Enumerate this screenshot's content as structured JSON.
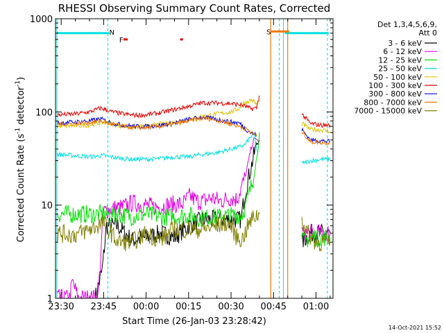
{
  "chart_data": {
    "type": "line",
    "title": "RHESSI Observing Summary Count Rates, Corrected",
    "xlabel": "Start Time (26-Jan-03 23:28:42)",
    "ylabel_main": "Corrected Count Rate (s",
    "ylabel_sup1": "-1",
    "ylabel_mid": " detector",
    "ylabel_sup2": "-1",
    "ylabel_end": ")",
    "y_scale": "log",
    "ylim": [
      1,
      1000
    ],
    "xlim_minutes": [
      -2,
      96
    ],
    "x_ticks": [
      {
        "label": "23:30",
        "t": 0
      },
      {
        "label": "23:45",
        "t": 15
      },
      {
        "label": "00:00",
        "t": 30
      },
      {
        "label": "00:15",
        "t": 45
      },
      {
        "label": "00:30",
        "t": 60
      },
      {
        "label": "00:45",
        "t": 75
      },
      {
        "label": "01:00",
        "t": 90
      }
    ],
    "y_ticks": [
      {
        "label": "1",
        "v": 1
      },
      {
        "label": "10",
        "v": 10
      },
      {
        "label": "100",
        "v": 100
      },
      {
        "label": "1000",
        "v": 1000
      }
    ],
    "legend_header": [
      "Det 1,3,4,5,6,9,",
      "Att 0"
    ],
    "legend_position": "right",
    "series": [
      {
        "name": "3 - 6 keV",
        "color": "#000000",
        "x": [
          -1.5,
          12,
          14.5,
          16,
          20,
          25,
          30,
          35,
          40,
          45,
          50,
          55,
          58,
          60,
          62,
          63.5,
          65,
          69,
          70,
          85,
          88,
          90,
          93,
          95
        ],
        "y": [
          1,
          1,
          2,
          6,
          6,
          4.2,
          4.5,
          5,
          4.5,
          6,
          7,
          7,
          7,
          7,
          7,
          7,
          14,
          45,
          50,
          4,
          5,
          5,
          5,
          5
        ]
      },
      {
        "name": "6 - 12 keV",
        "color": "#e000e0",
        "x": [
          -1.5,
          3,
          4,
          6,
          13,
          15,
          18,
          22,
          25,
          30,
          33,
          36,
          40,
          43,
          45.5,
          48,
          50,
          53,
          56,
          60,
          62,
          63.5,
          65,
          67,
          68,
          69,
          70,
          85,
          88,
          92,
          95
        ],
        "y": [
          1,
          1,
          1.5,
          1,
          1,
          8.5,
          9.2,
          9.5,
          10.5,
          10,
          9.5,
          9.8,
          10.2,
          10.3,
          12.5,
          11,
          11,
          12,
          11,
          12,
          11.5,
          15,
          20,
          40,
          50,
          52,
          45,
          5,
          5,
          5,
          5
        ]
      },
      {
        "name": "12 - 25 keV",
        "color": "#00e000",
        "x": [
          -1.5,
          5,
          10,
          15,
          20,
          25,
          30,
          35,
          40,
          45,
          50,
          55,
          60,
          62,
          64,
          66,
          68,
          69.5,
          70,
          85,
          88,
          92,
          95
        ],
        "y": [
          8,
          8,
          8,
          8,
          8,
          7.5,
          8,
          7.5,
          7.5,
          7.8,
          7.2,
          7.5,
          7.7,
          7.8,
          8,
          12,
          20,
          40,
          60,
          4,
          4.5,
          4.5,
          4.5
        ]
      },
      {
        "name": "25 - 50 keV",
        "color": "#00e0e0",
        "x": [
          -1.5,
          5,
          10,
          15,
          20,
          25,
          30,
          35,
          40,
          45,
          50,
          55,
          60,
          63,
          65,
          66.5,
          68,
          69.5,
          85,
          88,
          92,
          95
        ],
        "y": [
          35,
          34,
          33,
          34,
          32,
          31,
          31,
          31.5,
          33,
          33,
          35,
          36.5,
          40,
          42,
          45,
          52,
          58,
          35,
          28,
          30,
          31,
          31
        ]
      },
      {
        "name": "50 - 100 keV",
        "color": "#e0c000",
        "x": [
          -1.5,
          5,
          10,
          15,
          20,
          25,
          30,
          35,
          40,
          45,
          50,
          55,
          60,
          63,
          64.5,
          66,
          67.5,
          69,
          70,
          85,
          88,
          92,
          95
        ],
        "y": [
          70,
          71,
          72,
          78,
          71,
          69,
          70,
          74,
          78,
          82,
          90,
          95,
          100,
          110,
          125,
          130,
          135,
          120,
          130,
          75,
          65,
          64,
          62
        ]
      },
      {
        "name": "100 - 300 keV",
        "color": "#e00000",
        "x": [
          -1.5,
          5,
          10,
          14,
          18,
          22,
          26,
          30,
          35,
          40,
          45,
          50,
          55,
          60,
          63,
          65,
          67,
          69,
          70,
          85,
          88,
          92,
          95
        ],
        "y": [
          93,
          95,
          100,
          110,
          100,
          95,
          92,
          93,
          98,
          106,
          115,
          125,
          125,
          123,
          120,
          115,
          108,
          110,
          150,
          95,
          75,
          72,
          72
        ]
      },
      {
        "name": "300 - 800 keV",
        "color": "#0000e0",
        "x": [
          -1.5,
          5,
          10,
          14,
          18,
          22,
          26,
          30,
          35,
          40,
          45,
          50,
          55,
          60,
          63,
          65,
          67,
          69,
          85,
          88,
          92,
          95
        ],
        "y": [
          76,
          78,
          80,
          84,
          76,
          72,
          70,
          70,
          72,
          76,
          83,
          88,
          83,
          78,
          76,
          66,
          60,
          56,
          65,
          50,
          49,
          48
        ]
      },
      {
        "name": "800 - 7000 keV",
        "color": "#f07800",
        "x": [
          -1.5,
          5,
          10,
          14,
          18,
          22,
          26,
          30,
          35,
          40,
          45,
          50,
          55,
          60,
          63,
          65,
          67,
          69,
          85,
          88,
          92,
          95
        ],
        "y": [
          74,
          75,
          77,
          80,
          74,
          70,
          68,
          68,
          70,
          74,
          80,
          86,
          82,
          74,
          70,
          66,
          60,
          55,
          62,
          48,
          47,
          47
        ]
      },
      {
        "name": "7000 - 15000 keV",
        "color": "#808000",
        "x": [
          -1.5,
          5,
          10,
          15,
          20,
          25,
          30,
          35,
          40,
          45,
          50,
          55,
          58,
          60,
          62,
          64,
          66,
          68,
          70,
          85,
          87,
          90,
          95
        ],
        "y": [
          5,
          4.8,
          5.5,
          6.5,
          4,
          4,
          5,
          4.2,
          5.5,
          5.5,
          5.5,
          6,
          6.5,
          6,
          4.5,
          4.3,
          6,
          7.5,
          8,
          7,
          5,
          4,
          4
        ]
      }
    ],
    "cyan_bars": [
      {
        "x_start": -1.5,
        "x_end": 17,
        "y": 700
      },
      {
        "x_start": 79,
        "x_end": 94.5,
        "y": 700
      }
    ],
    "cyan_verticals_solid": [
      -1.5,
      78.5
    ],
    "cyan_verticals_dashed": [
      16.5,
      77,
      94
    ],
    "cyan_label": {
      "text": "N",
      "t": 16.5
    },
    "orange_verticals": [
      74,
      80
    ],
    "orange_bar": {
      "x_start": 74,
      "x_end": 80.5,
      "y": 730
    },
    "orange_label": {
      "text": "S",
      "t": 72.5
    },
    "red_markers": [
      {
        "x_start": 22,
        "x_end": 23.5,
        "y": 600
      },
      {
        "x_start": 42,
        "x_end": 43,
        "y": 600
      }
    ],
    "red_label": {
      "text": "F",
      "t": 20.5
    },
    "grid": false
  },
  "footer": {
    "timestamp": "14-Oct-2021 15:52"
  }
}
